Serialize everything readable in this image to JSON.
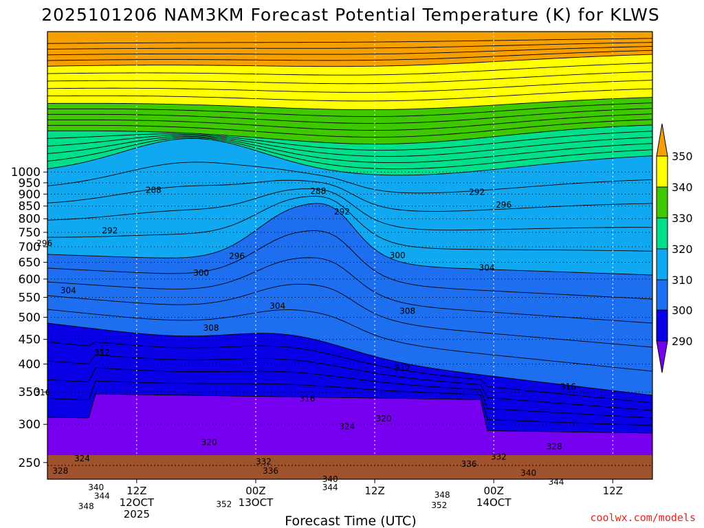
{
  "chart_data": {
    "type": "heatmap",
    "title": "2025101206 NAM3KM Forecast Potential Temperature (K) for KLWS",
    "xlabel": "Forecast Time (UTC)",
    "ylabel": "",
    "credit": "coolwx.com/models",
    "y_ticks": [
      "250",
      "300",
      "350",
      "400",
      "450",
      "500",
      "550",
      "600",
      "650",
      "700",
      "750",
      "800",
      "850",
      "900",
      "950",
      "1000"
    ],
    "x_ticks": [
      {
        "line1": "12Z",
        "line2": "12OCT",
        "line3": "2025"
      },
      {
        "line1": "00Z",
        "line2": "13OCT",
        "line3": ""
      },
      {
        "line1": "12Z",
        "line2": "",
        "line3": ""
      },
      {
        "line1": "00Z",
        "line2": "14OCT",
        "line3": ""
      },
      {
        "line1": "12Z",
        "line2": "",
        "line3": ""
      }
    ],
    "colorbar": {
      "ticks": [
        "350",
        "340",
        "330",
        "320",
        "310",
        "300",
        "290"
      ],
      "colors": [
        "#f5a000",
        "#ffff00",
        "#3ec800",
        "#00e08c",
        "#10a8f0",
        "#1e6ef0",
        "#0a00e6",
        "#7800f0"
      ]
    },
    "ground_color": "#a0522d",
    "contour_labels": [
      {
        "text": "348",
        "x": 6.9,
        "p": 203
      },
      {
        "text": "344",
        "x": 8.5,
        "p": 213
      },
      {
        "text": "340",
        "x": 7.9,
        "p": 222
      },
      {
        "text": "352",
        "x": 20.8,
        "p": 205
      },
      {
        "text": "352",
        "x": 42.5,
        "p": 204
      },
      {
        "text": "348",
        "x": 42.8,
        "p": 214
      },
      {
        "text": "344",
        "x": 31.5,
        "p": 222
      },
      {
        "text": "340",
        "x": 31.5,
        "p": 231
      },
      {
        "text": "344",
        "x": 54.3,
        "p": 228
      },
      {
        "text": "340",
        "x": 51.5,
        "p": 238
      },
      {
        "text": "328",
        "x": 4.3,
        "p": 240
      },
      {
        "text": "336",
        "x": 25.5,
        "p": 240
      },
      {
        "text": "332",
        "x": 24.8,
        "p": 251
      },
      {
        "text": "324",
        "x": 6.5,
        "p": 255
      },
      {
        "text": "336",
        "x": 45.5,
        "p": 248
      },
      {
        "text": "332",
        "x": 48.5,
        "p": 257
      },
      {
        "text": "328",
        "x": 54.1,
        "p": 270
      },
      {
        "text": "320",
        "x": 19.3,
        "p": 275
      },
      {
        "text": "324",
        "x": 33.2,
        "p": 297
      },
      {
        "text": "320",
        "x": 36.9,
        "p": 308
      },
      {
        "text": "316",
        "x": 29.2,
        "p": 339
      },
      {
        "text": "316",
        "x": 2.5,
        "p": 349
      },
      {
        "text": "316",
        "x": 55.5,
        "p": 359
      },
      {
        "text": "312",
        "x": 38.8,
        "p": 392
      },
      {
        "text": "312",
        "x": 8.5,
        "p": 422
      },
      {
        "text": "308",
        "x": 19.5,
        "p": 475
      },
      {
        "text": "308",
        "x": 39.3,
        "p": 515
      },
      {
        "text": "304",
        "x": 26.2,
        "p": 528
      },
      {
        "text": "304",
        "x": 5.1,
        "p": 568
      },
      {
        "text": "300",
        "x": 18.5,
        "p": 618
      },
      {
        "text": "304",
        "x": 47.3,
        "p": 633
      },
      {
        "text": "296",
        "x": 22.1,
        "p": 670
      },
      {
        "text": "300",
        "x": 38.3,
        "p": 672
      },
      {
        "text": "296",
        "x": 2.7,
        "p": 711
      },
      {
        "text": "292",
        "x": 9.3,
        "p": 756
      },
      {
        "text": "292",
        "x": 32.7,
        "p": 827
      },
      {
        "text": "296",
        "x": 49.0,
        "p": 855
      },
      {
        "text": "292",
        "x": 46.3,
        "p": 908
      },
      {
        "text": "288",
        "x": 13.7,
        "p": 918
      },
      {
        "text": "288",
        "x": 30.3,
        "p": 913
      }
    ]
  }
}
